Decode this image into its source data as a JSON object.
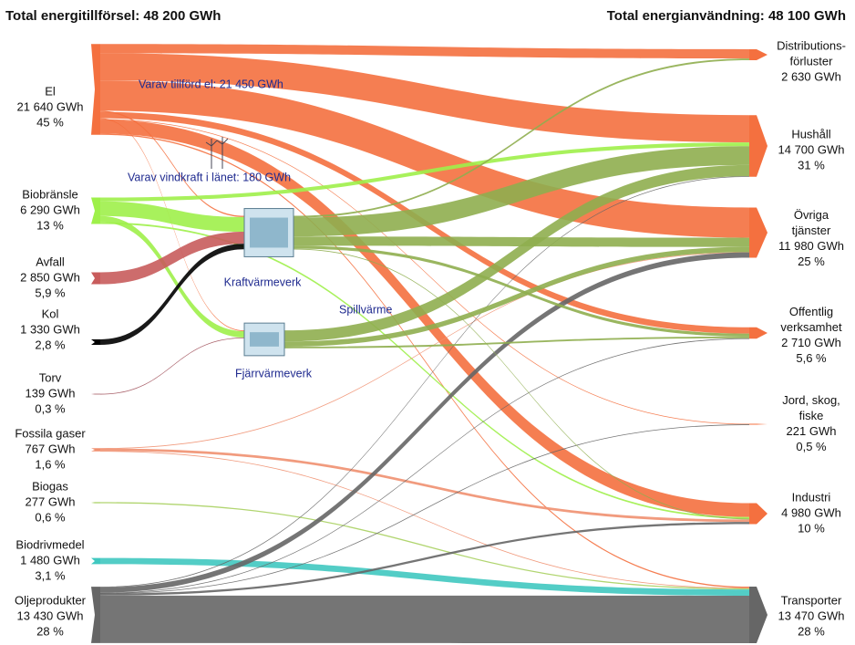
{
  "chart_data": {
    "type": "sankey",
    "title": "Total energitillförsel: 48 200 GWh",
    "subtitle": "Total energianvändning: 48 100 GWh",
    "annotations": [
      "Varav tillförd el: 21 450 GWh",
      "Varav vindkraft i länet: 180 GWh",
      "Spillvärme"
    ],
    "nodes": [
      {
        "label": [
          "El"
        ],
        "value": 21640,
        "value_label": "21 640 GWh",
        "share": 45,
        "share_label": "45 %",
        "color": "#f4703f"
      },
      {
        "label": [
          "Biobränsle"
        ],
        "value": 6290,
        "value_label": "6 290 GWh",
        "share": 13,
        "share_label": "13 %",
        "color": "#9ef04a"
      },
      {
        "label": [
          "Avfall"
        ],
        "value": 2850,
        "value_label": "2 850 GWh",
        "share": 5.9,
        "share_label": "5,9 %",
        "color": "#c85c5c"
      },
      {
        "label": [
          "Kol"
        ],
        "value": 1330,
        "value_label": "1 330 GWh",
        "share": 2.8,
        "share_label": "2,8 %",
        "color": "#000000"
      },
      {
        "label": [
          "Torv"
        ],
        "value": 139,
        "value_label": "139 GWh",
        "share": 0.3,
        "share_label": "0,3 %",
        "color": "#a0505a"
      },
      {
        "label": [
          "Fossila gaser"
        ],
        "value": 767,
        "value_label": "767 GWh",
        "share": 1.6,
        "share_label": "1,6 %",
        "color": "#f09070"
      },
      {
        "label": [
          "Biogas"
        ],
        "value": 277,
        "value_label": "277 GWh",
        "share": 0.6,
        "share_label": "0,6 %",
        "color": "#a8d060"
      },
      {
        "label": [
          "Biodrivmedel"
        ],
        "value": 1480,
        "value_label": "1 480 GWh",
        "share": 3.1,
        "share_label": "3,1 %",
        "color": "#40c8c0"
      },
      {
        "label": [
          "Oljeprodukter"
        ],
        "value": 13430,
        "value_label": "13 430 GWh",
        "share": 28,
        "share_label": "28 %",
        "color": "#666666"
      },
      {
        "label": [
          "Kraftvärmeverk"
        ],
        "color": "#8fae4f"
      },
      {
        "label": [
          "Fjärrvärmeverk"
        ],
        "color": "#8fae4f"
      },
      {
        "label": [
          "Distributions-",
          "förluster"
        ],
        "value": 2630,
        "value_label": "2 630 GWh",
        "color": "#f4703f"
      },
      {
        "label": [
          "Hushåll"
        ],
        "value": 14700,
        "value_label": "14 700 GWh",
        "share": 31,
        "share_label": "31 %",
        "color": "#f4703f"
      },
      {
        "label": [
          "Övriga",
          "tjänster"
        ],
        "value": 11980,
        "value_label": "11 980 GWh",
        "share": 25,
        "share_label": "25 %",
        "color": "#f4703f"
      },
      {
        "label": [
          "Offentlig",
          "verksamhet"
        ],
        "value": 2710,
        "value_label": "2 710 GWh",
        "share": 5.6,
        "share_label": "5,6 %",
        "color": "#f4703f"
      },
      {
        "label": [
          "Jord, skog,",
          "fiske"
        ],
        "value": 221,
        "value_label": "221 GWh",
        "share": 0.5,
        "share_label": "0,5 %",
        "color": "#f4703f"
      },
      {
        "label": [
          "Industri"
        ],
        "value": 4980,
        "value_label": "4 980 GWh",
        "share": 10,
        "share_label": "10 %",
        "color": "#f4703f"
      },
      {
        "label": [
          "Transporter"
        ],
        "value": 13470,
        "value_label": "13 470 GWh",
        "share": 28,
        "share_label": "28 %",
        "color": "#666666"
      }
    ],
    "links": [
      {
        "source": 0,
        "target": 11,
        "value": 2199
      },
      {
        "source": 0,
        "target": 12,
        "value": 6500
      },
      {
        "source": 0,
        "target": 13,
        "value": 7200
      },
      {
        "source": 0,
        "target": 14,
        "value": 1500
      },
      {
        "source": 0,
        "target": 15,
        "value": 141
      },
      {
        "source": 0,
        "target": 16,
        "value": 3300
      },
      {
        "source": 0,
        "target": 17,
        "value": 300
      },
      {
        "source": 0,
        "target": 9,
        "value": 300
      },
      {
        "source": 0,
        "target": 10,
        "value": 200
      },
      {
        "source": 1,
        "target": 9,
        "value": 3500
      },
      {
        "source": 1,
        "target": 10,
        "value": 1500
      },
      {
        "source": 1,
        "target": 12,
        "value": 900
      },
      {
        "source": 1,
        "target": 16,
        "value": 390
      },
      {
        "source": 2,
        "target": 9,
        "value": 2850
      },
      {
        "source": 3,
        "target": 9,
        "value": 1330
      },
      {
        "source": 4,
        "target": 10,
        "value": 139
      },
      {
        "source": 5,
        "target": 16,
        "value": 600
      },
      {
        "source": 5,
        "target": 17,
        "value": 100
      },
      {
        "source": 5,
        "target": 13,
        "value": 67
      },
      {
        "source": 6,
        "target": 17,
        "value": 277
      },
      {
        "source": 7,
        "target": 17,
        "value": 1480
      },
      {
        "source": 8,
        "target": 17,
        "value": 11313
      },
      {
        "source": 8,
        "target": 13,
        "value": 1287
      },
      {
        "source": 8,
        "target": 16,
        "value": 500
      },
      {
        "source": 8,
        "target": 15,
        "value": 80
      },
      {
        "source": 8,
        "target": 14,
        "value": 100
      },
      {
        "source": 8,
        "target": 12,
        "value": 150
      },
      {
        "source": 9,
        "target": 12,
        "value": 4500
      },
      {
        "source": 9,
        "target": 13,
        "value": 2200
      },
      {
        "source": 9,
        "target": 14,
        "value": 700
      },
      {
        "source": 9,
        "target": 11,
        "value": 431
      },
      {
        "source": 9,
        "target": 16,
        "value": 190
      },
      {
        "source": 10,
        "target": 12,
        "value": 2650
      },
      {
        "source": 10,
        "target": 13,
        "value": 1226
      },
      {
        "source": 10,
        "target": 14,
        "value": 410
      }
    ]
  }
}
